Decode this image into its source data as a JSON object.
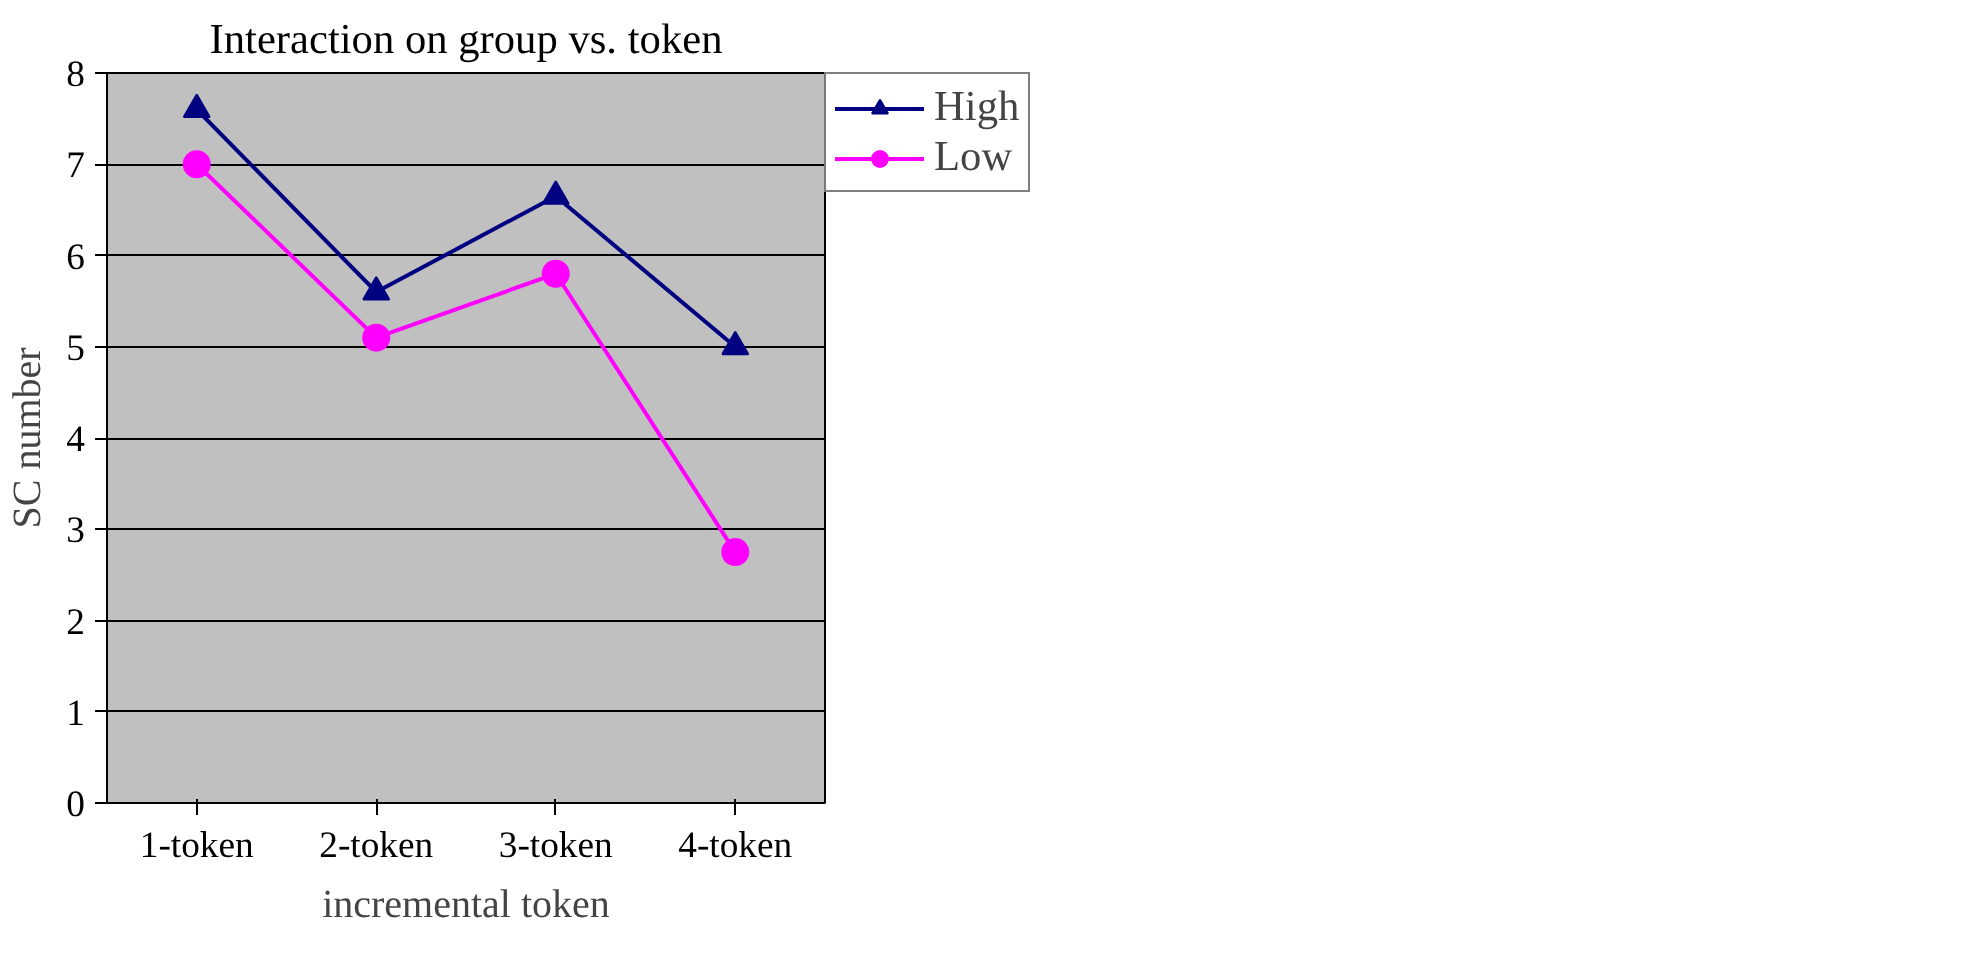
{
  "chart_data": {
    "type": "line",
    "title": "Interaction on group vs. token",
    "xlabel": "incremental token",
    "ylabel": "SC number",
    "categories": [
      "1-token",
      "2-token",
      "3-token",
      "4-token"
    ],
    "series": [
      {
        "name": "High",
        "color": "#000080",
        "marker": "triangle",
        "values": [
          7.6,
          5.6,
          6.65,
          5.0
        ]
      },
      {
        "name": "Low",
        "color": "#ff00ff",
        "marker": "circle",
        "values": [
          7.0,
          5.1,
          5.8,
          2.75
        ]
      }
    ],
    "ylim": [
      0,
      8
    ],
    "yticks": [
      0,
      1,
      2,
      3,
      4,
      5,
      6,
      7,
      8
    ],
    "grid": "y",
    "legend": "top right"
  }
}
